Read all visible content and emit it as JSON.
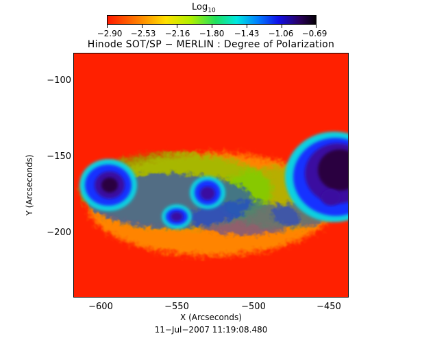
{
  "colorbar": {
    "title": "Log",
    "title_sub": "10",
    "ticks": [
      "−2.90",
      "−2.53",
      "−2.16",
      "−1.80",
      "−1.43",
      "−1.06",
      "−0.69"
    ]
  },
  "plot": {
    "title": "Hinode SOT/SP − MERLIN : Degree of Polarization",
    "xlabel": "X (Arcseconds)",
    "ylabel": "Y (Arcseconds)",
    "xticks": [
      "−600",
      "−550",
      "−500",
      "−450"
    ],
    "yticks": [
      "−100",
      "−150",
      "−200"
    ]
  },
  "timestamp": "11−Jul−2007 11:19:08.480"
}
